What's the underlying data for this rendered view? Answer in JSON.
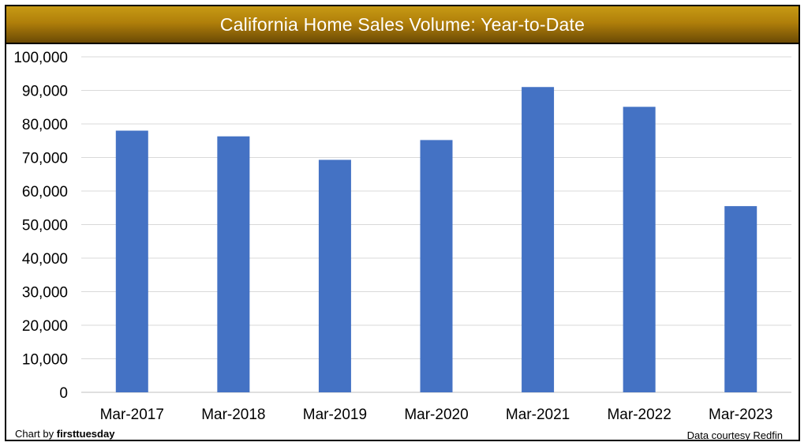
{
  "chart_data": {
    "type": "bar",
    "title": "California Home Sales Volume: Year-to-Date",
    "xlabel": "",
    "ylabel": "",
    "categories": [
      "Mar-2017",
      "Mar-2018",
      "Mar-2019",
      "Mar-2020",
      "Mar-2021",
      "Mar-2022",
      "Mar-2023"
    ],
    "values": [
      78000,
      76300,
      69300,
      75200,
      91000,
      85100,
      55500
    ],
    "ylim": [
      0,
      100000
    ],
    "yticks": [
      0,
      10000,
      20000,
      30000,
      40000,
      50000,
      60000,
      70000,
      80000,
      90000,
      100000
    ],
    "ytick_labels": [
      "0",
      "10,000",
      "20,000",
      "30,000",
      "40,000",
      "50,000",
      "60,000",
      "70,000",
      "80,000",
      "90,000",
      "100,000"
    ],
    "grid": true,
    "legend": "none",
    "bar_color": "#4472c4",
    "title_bar_color": "#b8860b"
  },
  "footer": {
    "credit_prefix": "Chart by ",
    "credit_brand": "firsttuesday",
    "source": "Data courtesy Redfin"
  }
}
